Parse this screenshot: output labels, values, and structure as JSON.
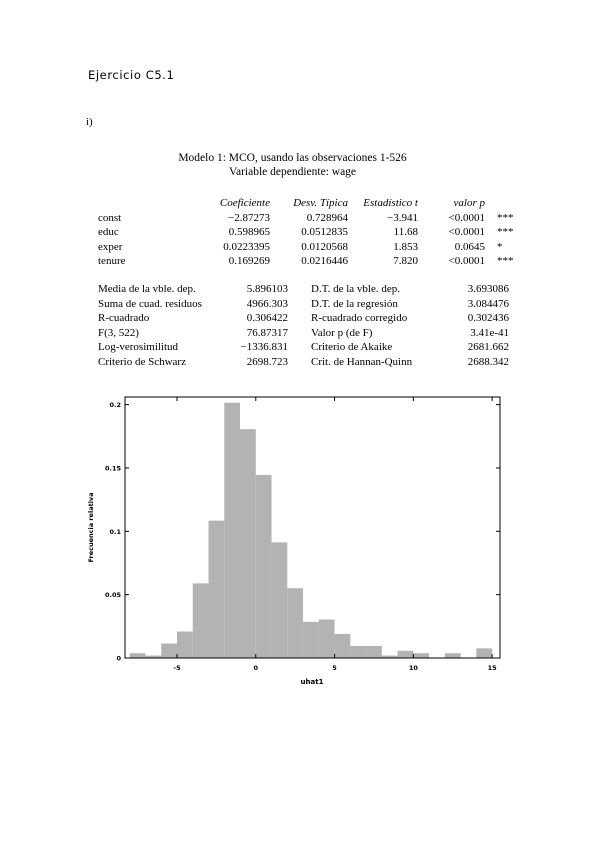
{
  "heading": "Ejercicio C5.1",
  "part": "i)",
  "model": {
    "title": "Modelo 1: MCO, usando las observaciones 1-526",
    "dependent": "Variable dependiente: wage",
    "headers": [
      "Coeficiente",
      "Desv. Típica",
      "Estadístico t",
      "valor p"
    ],
    "rows": [
      {
        "name": "const",
        "coef": "−2.87273",
        "se": "0.728964",
        "t": "−3.941",
        "p": "<0.0001",
        "stars": "***"
      },
      {
        "name": "educ",
        "coef": "0.598965",
        "se": "0.0512835",
        "t": "11.68",
        "p": "<0.0001",
        "stars": "***"
      },
      {
        "name": "exper",
        "coef": "0.0223395",
        "se": "0.0120568",
        "t": "1.853",
        "p": "0.0645",
        "stars": "*"
      },
      {
        "name": "tenure",
        "coef": "0.169269",
        "se": "0.0216446",
        "t": "7.820",
        "p": "<0.0001",
        "stars": "***"
      }
    ],
    "stats": [
      {
        "l1": "Media de la vble. dep.",
        "v1": "5.896103",
        "l2": "D.T. de la vble. dep.",
        "v2": "3.693086"
      },
      {
        "l1": "Suma de cuad. residuos",
        "v1": "4966.303",
        "l2": "D.T. de la regresión",
        "v2": "3.084476"
      },
      {
        "l1": "R-cuadrado",
        "v1": "0.306422",
        "l2": "R-cuadrado corregido",
        "v2": "0.302436"
      },
      {
        "l1": "F(3, 522)",
        "v1": "76.87317",
        "l2": "Valor p (de F)",
        "v2": "3.41e-41"
      },
      {
        "l1": "Log-verosimilitud",
        "v1": "−1336.831",
        "l2": "Criterio de Akaike",
        "v2": "2681.662"
      },
      {
        "l1": "Criterio de Schwarz",
        "v1": "2698.723",
        "l2": "Crit. de Hannan-Quinn",
        "v2": "2688.342"
      }
    ]
  },
  "chart_data": {
    "type": "bar",
    "xlabel": "uhat1",
    "ylabel": "Frecuencia relativa",
    "xlim": [
      -8.3,
      15.5
    ],
    "ylim": [
      0,
      0.206
    ],
    "xticks": [
      -5,
      0,
      5,
      10,
      15
    ],
    "yticks": [
      0,
      0.05,
      0.1,
      0.15,
      0.2
    ],
    "bin_width": 1,
    "bin_centers": [
      -7.5,
      -6.5,
      -5.5,
      -4.5,
      -3.5,
      -2.5,
      -1.5,
      -0.5,
      0.5,
      1.5,
      2.5,
      3.5,
      4.5,
      5.5,
      6.5,
      7.5,
      8.5,
      9.5,
      10.5,
      11.5,
      12.5,
      13.5,
      14.5
    ],
    "values": [
      0.0038,
      0.0019,
      0.0114,
      0.0209,
      0.0589,
      0.1084,
      0.2015,
      0.1806,
      0.1445,
      0.0913,
      0.0551,
      0.0285,
      0.0304,
      0.019,
      0.0095,
      0.0095,
      0.0019,
      0.0057,
      0.0038,
      0.0,
      0.0038,
      0.0,
      0.0076
    ],
    "bar_color": "#b3b3b3"
  }
}
